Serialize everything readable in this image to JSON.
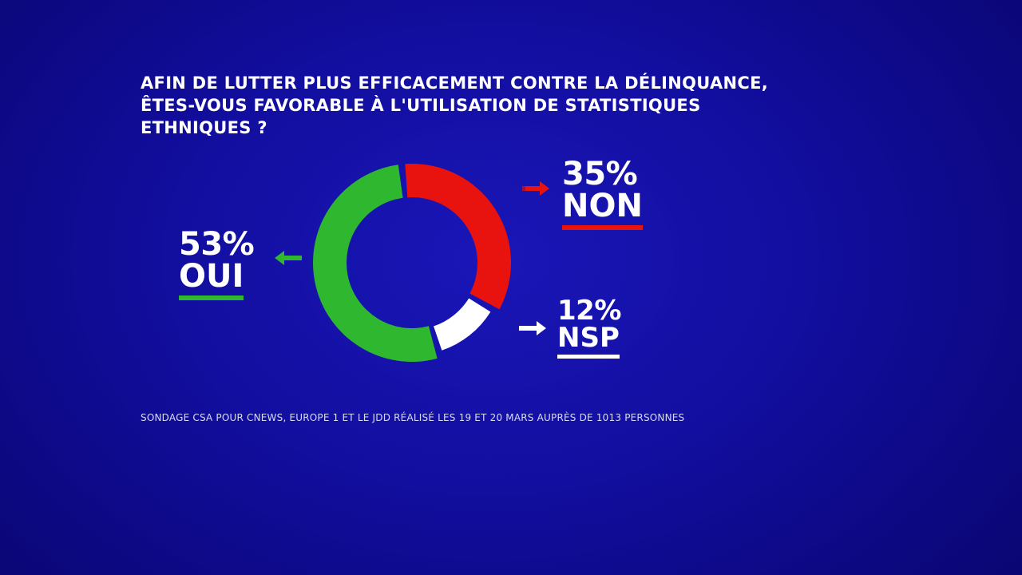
{
  "question": {
    "lines": [
      "AFIN DE LUTTER PLUS EFFICACEMENT CONTRE LA DÉLINQUANCE,",
      "ÊTES-VOUS FAVORABLE À L'UTILISATION DE STATISTIQUES",
      "ETHNIQUES ?"
    ]
  },
  "chart_data": {
    "type": "pie",
    "donut": true,
    "categories": [
      "OUI",
      "NON",
      "NSP"
    ],
    "values": [
      53,
      35,
      12
    ],
    "value_labels": [
      "53%",
      "35%",
      "12%"
    ],
    "colors": [
      "#2fb72f",
      "#e8130f",
      "#ffffff"
    ],
    "title": "",
    "legend": "none"
  },
  "labels": {
    "oui": {
      "pct": "53%",
      "word": "OUI",
      "color": "#2fb72f"
    },
    "non": {
      "pct": "35%",
      "word": "NON",
      "color": "#e8130f"
    },
    "nsp": {
      "pct": "12%",
      "word": "NSP",
      "color": "#ffffff"
    }
  },
  "source": "SONDAGE CSA POUR CNEWS, EUROPE 1 ET LE JDD RÉALISÉ LES 19 ET 20 MARS AUPRÈS DE 1013 PERSONNES",
  "background_color": "#120e9e"
}
